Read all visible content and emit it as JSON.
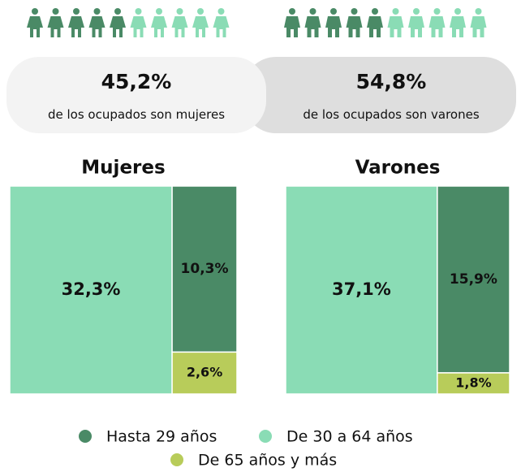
{
  "summary": [
    {
      "label": "45,2%",
      "text": "de los ocupados son mujeres"
    },
    {
      "label": "54,8%",
      "text": "de los ocupados son varones"
    }
  ],
  "chart_data": [
    {
      "type": "treemap",
      "title": "Mujeres",
      "categories": [
        "Hasta 29 años",
        "De 30 a 64 años",
        "De 65 años y más"
      ],
      "values": [
        10.3,
        32.3,
        2.6
      ],
      "value_labels": [
        "10,3%",
        "32,3%",
        "2,6%"
      ],
      "colors": [
        "#4a8a66",
        "#8adcb5",
        "#b8cc5a"
      ]
    },
    {
      "type": "treemap",
      "title": "Varones",
      "categories": [
        "Hasta 29 años",
        "De 30 a 64 años",
        "De 65 años y más"
      ],
      "values": [
        15.9,
        37.1,
        1.8
      ],
      "value_labels": [
        "15,9%",
        "37,1%",
        "1,8%"
      ],
      "colors": [
        "#4a8a66",
        "#8adcb5",
        "#b8cc5a"
      ]
    }
  ]
}
